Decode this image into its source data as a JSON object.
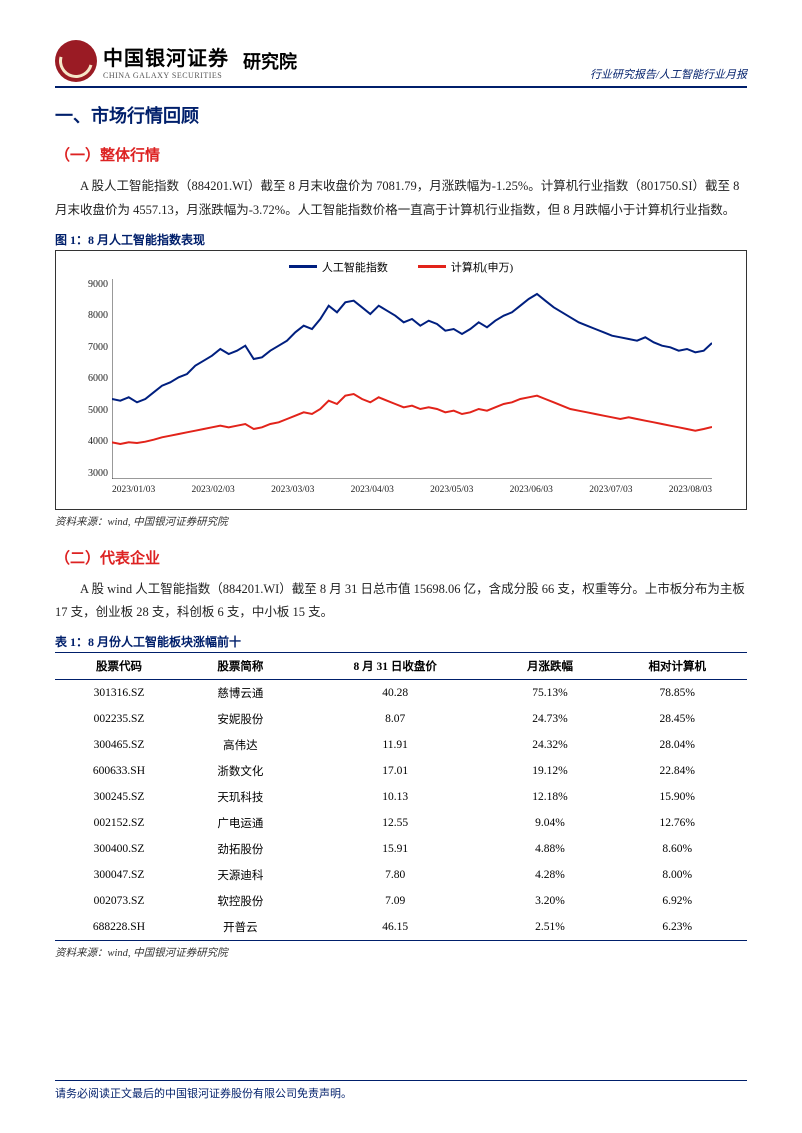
{
  "header": {
    "company_cn": "中国银河证券",
    "company_en": "CHINA GALAXY SECURITIES",
    "dept": "研究院",
    "breadcrumb": "行业研究报告/人工智能行业月报"
  },
  "section1": {
    "title": "一、市场行情回顾",
    "sub1_title": "（一）整体行情",
    "sub1_body": "A 股人工智能指数（884201.WI）截至 8 月末收盘价为 7081.79，月涨跌幅为-1.25%。计算机行业指数（801750.SI）截至 8 月末收盘价为 4557.13，月涨跌幅为-3.72%。人工智能指数价格一直高于计算机行业指数，但 8 月跌幅小于计算机行业指数。",
    "fig1_caption": "图 1：8 月人工智能指数表现",
    "source1": "资料来源：wind, 中国银河证券研究院",
    "sub2_title": "（二）代表企业",
    "sub2_body": "A 股 wind 人工智能指数（884201.WI）截至 8 月 31 日总市值 15698.06 亿，含成分股 66 支，权重等分。上市板分布为主板 17 支，创业板 28 支，科创板 6 支，中小板 15 支。",
    "tbl1_caption": "表 1：8 月份人工智能板块涨幅前十",
    "source2": "资料来源：wind, 中国银河证券研究院"
  },
  "chart": {
    "type": "line",
    "legend": [
      {
        "label": "人工智能指数",
        "color": "#001f7f"
      },
      {
        "label": "计算机(申万)",
        "color": "#e2231a"
      }
    ],
    "ylim": [
      3000,
      9000
    ],
    "yticks": [
      3000,
      4000,
      5000,
      6000,
      7000,
      8000,
      9000
    ],
    "xticks": [
      "2023/01/03",
      "2023/02/03",
      "2023/03/03",
      "2023/04/03",
      "2023/05/03",
      "2023/06/03",
      "2023/07/03",
      "2023/08/03"
    ],
    "background_color": "#ffffff",
    "line_width": 2,
    "series_ai": [
      5400,
      5350,
      5450,
      5300,
      5400,
      5600,
      5800,
      5900,
      6050,
      6150,
      6400,
      6550,
      6700,
      6900,
      6750,
      6850,
      7000,
      6600,
      6650,
      6850,
      7000,
      7150,
      7400,
      7600,
      7500,
      7800,
      8200,
      8000,
      8300,
      8350,
      8150,
      7950,
      8200,
      8050,
      7900,
      7700,
      7800,
      7600,
      7750,
      7650,
      7450,
      7500,
      7350,
      7500,
      7700,
      7550,
      7750,
      7900,
      8000,
      8200,
      8400,
      8550,
      8350,
      8150,
      8000,
      7850,
      7700,
      7600,
      7500,
      7400,
      7300,
      7250,
      7200,
      7150,
      7250,
      7100,
      7000,
      6950,
      6850,
      6900,
      6800,
      6850,
      7080
    ],
    "series_comp": [
      4100,
      4050,
      4100,
      4080,
      4120,
      4180,
      4250,
      4300,
      4350,
      4400,
      4450,
      4500,
      4550,
      4600,
      4550,
      4600,
      4650,
      4500,
      4550,
      4650,
      4700,
      4800,
      4900,
      5000,
      4950,
      5100,
      5350,
      5250,
      5500,
      5550,
      5400,
      5300,
      5450,
      5350,
      5250,
      5150,
      5200,
      5100,
      5150,
      5100,
      5000,
      5050,
      4950,
      5000,
      5100,
      5050,
      5150,
      5250,
      5300,
      5400,
      5450,
      5500,
      5400,
      5300,
      5200,
      5100,
      5050,
      5000,
      4950,
      4900,
      4850,
      4800,
      4850,
      4800,
      4750,
      4700,
      4650,
      4600,
      4550,
      4500,
      4450,
      4500,
      4560
    ]
  },
  "table": {
    "columns": [
      "股票代码",
      "股票简称",
      "8 月 31 日收盘价",
      "月涨跌幅",
      "相对计算机"
    ],
    "rows": [
      [
        "301316.SZ",
        "慈博云通",
        "40.28",
        "75.13%",
        "78.85%"
      ],
      [
        "002235.SZ",
        "安妮股份",
        "8.07",
        "24.73%",
        "28.45%"
      ],
      [
        "300465.SZ",
        "高伟达",
        "11.91",
        "24.32%",
        "28.04%"
      ],
      [
        "600633.SH",
        "浙数文化",
        "17.01",
        "19.12%",
        "22.84%"
      ],
      [
        "300245.SZ",
        "天玑科技",
        "10.13",
        "12.18%",
        "15.90%"
      ],
      [
        "002152.SZ",
        "广电运通",
        "12.55",
        "9.04%",
        "12.76%"
      ],
      [
        "300400.SZ",
        "劲拓股份",
        "15.91",
        "4.88%",
        "8.60%"
      ],
      [
        "300047.SZ",
        "天源迪科",
        "7.80",
        "4.28%",
        "8.00%"
      ],
      [
        "002073.SZ",
        "软控股份",
        "7.09",
        "3.20%",
        "6.92%"
      ],
      [
        "688228.SH",
        "开普云",
        "46.15",
        "2.51%",
        "6.23%"
      ]
    ]
  },
  "footer": "请务必阅读正文最后的中国银河证券股份有限公司免责声明。"
}
